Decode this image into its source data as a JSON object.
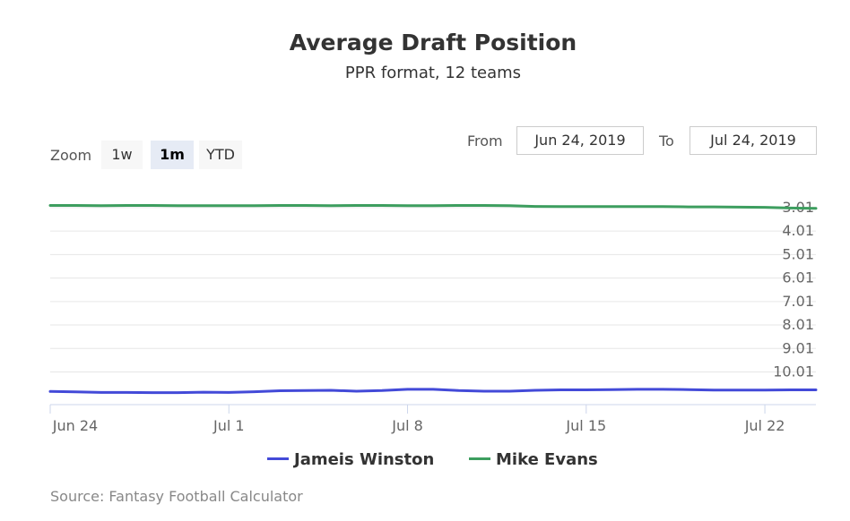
{
  "chart_data": {
    "type": "line",
    "title": "Average Draft Position",
    "subtitle": "PPR format, 12 teams",
    "x": [
      0,
      1,
      2,
      3,
      4,
      5,
      6,
      7,
      8,
      9,
      10,
      11,
      12,
      13,
      14,
      15,
      16,
      17,
      18,
      19,
      20,
      21,
      22,
      23,
      24,
      25,
      26,
      27,
      28,
      29,
      30
    ],
    "x_tick_labels": [
      {
        "x": 0,
        "label": "Jun 24"
      },
      {
        "x": 7,
        "label": "Jul 1"
      },
      {
        "x": 14,
        "label": "Jul 8"
      },
      {
        "x": 21,
        "label": "Jul 15"
      },
      {
        "x": 28,
        "label": "Jul 22"
      }
    ],
    "y_tick_labels": [
      "3.01",
      "4.01",
      "5.01",
      "6.01",
      "7.01",
      "8.01",
      "9.01",
      "10.01"
    ],
    "y_ticks": [
      3.01,
      4.01,
      5.01,
      6.01,
      7.01,
      8.01,
      9.01,
      10.01
    ],
    "ylim": [
      2.1,
      11.4
    ],
    "y_reversed": true,
    "series": [
      {
        "name": "Jameis Winston",
        "color": "#434ad8",
        "values": [
          10.84,
          10.86,
          10.88,
          10.88,
          10.89,
          10.89,
          10.87,
          10.88,
          10.85,
          10.81,
          10.8,
          10.79,
          10.83,
          10.8,
          10.75,
          10.75,
          10.8,
          10.83,
          10.83,
          10.79,
          10.77,
          10.77,
          10.76,
          10.75,
          10.75,
          10.76,
          10.78,
          10.78,
          10.78,
          10.77,
          10.77
        ]
      },
      {
        "name": "Mike Evans",
        "color": "#3d9e5f",
        "values": [
          2.92,
          2.92,
          2.93,
          2.92,
          2.92,
          2.93,
          2.93,
          2.93,
          2.93,
          2.92,
          2.92,
          2.93,
          2.92,
          2.92,
          2.93,
          2.93,
          2.92,
          2.92,
          2.93,
          2.96,
          2.97,
          2.97,
          2.97,
          2.97,
          2.97,
          2.98,
          2.98,
          2.99,
          3.0,
          3.03,
          3.04
        ]
      }
    ],
    "grid": true,
    "legend": "bottom-center"
  },
  "zoom": {
    "label": "Zoom",
    "buttons": [
      "1w",
      "1m",
      "YTD"
    ],
    "selected": "1m"
  },
  "range": {
    "from_label": "From",
    "from_value": "Jun 24, 2019",
    "to_label": "To",
    "to_value": "Jul 24, 2019"
  },
  "source": "Source: Fantasy Football Calculator"
}
